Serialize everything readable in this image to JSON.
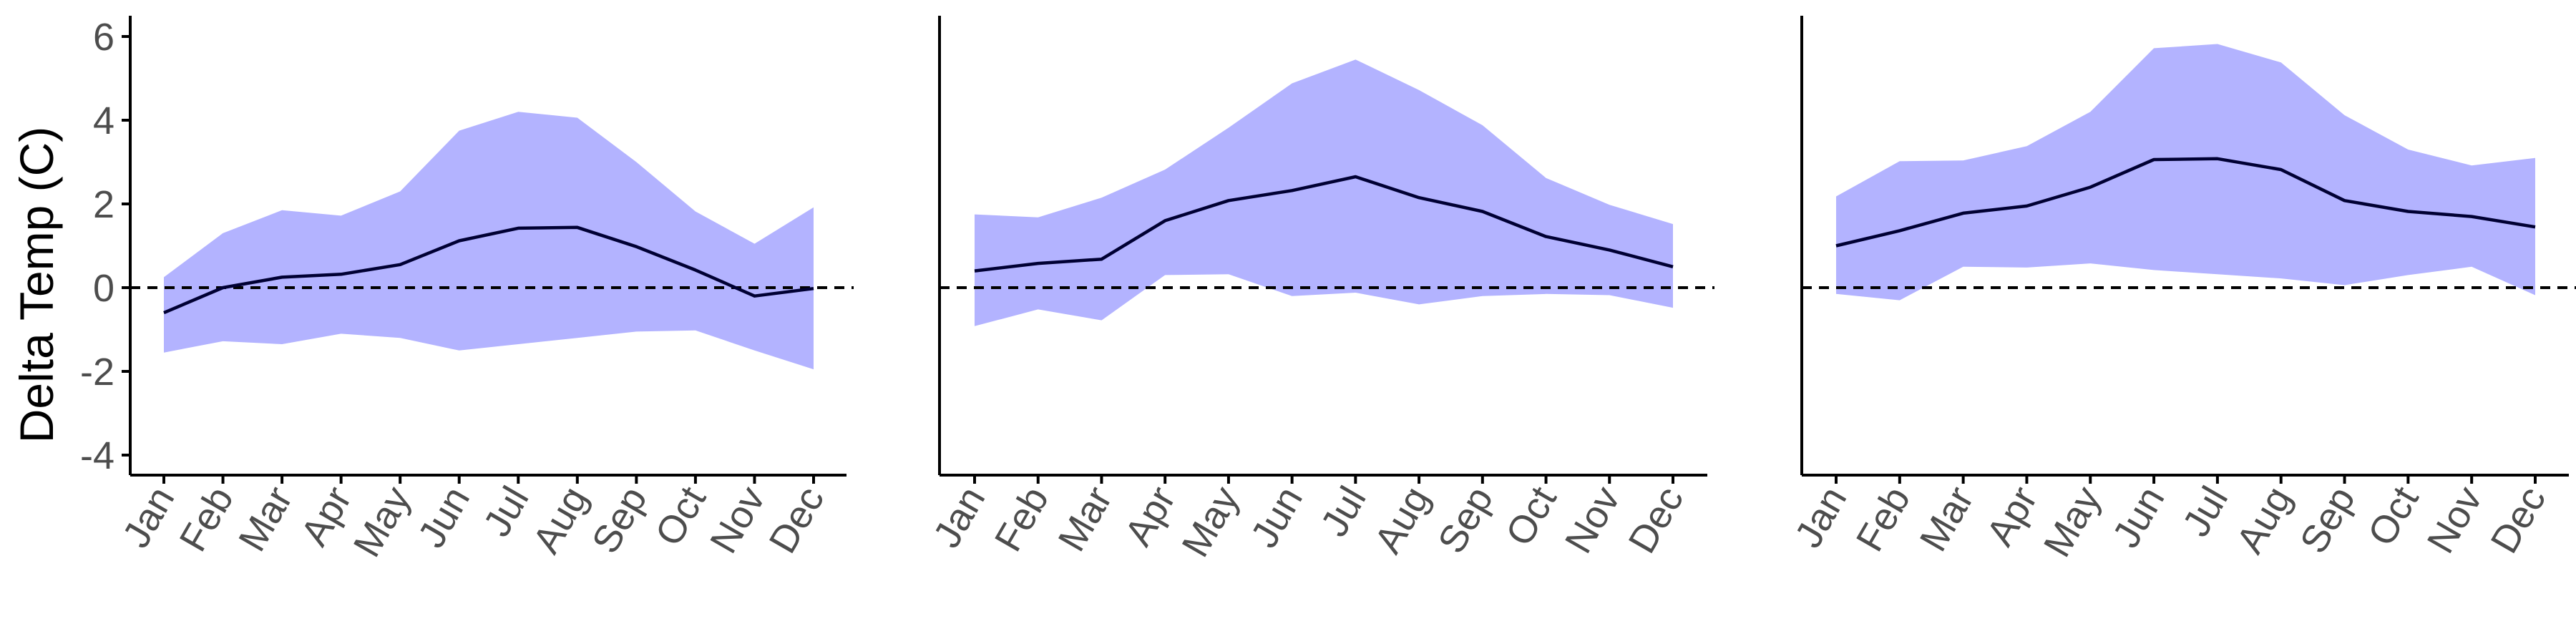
{
  "colors": {
    "ribbon": "#b3b3ff",
    "line": "#000033",
    "axis": "#000000",
    "tick_text": "#4d4d4d",
    "zero_line": "#000000"
  },
  "chart_data": [
    {
      "type": "area",
      "panel": 1,
      "ylabel": "Delta Temp (C)",
      "ylim": [
        -4.5,
        6.5
      ],
      "yticks": [
        -4,
        -2,
        0,
        2,
        4,
        6
      ],
      "show_y_tick_labels": true,
      "categories": [
        "Jan",
        "Feb",
        "Mar",
        "Apr",
        "May",
        "Jun",
        "Jul",
        "Aug",
        "Sep",
        "Oct",
        "Nov",
        "Dec"
      ],
      "series": [
        {
          "role": "mean",
          "values": [
            -0.6,
            0.0,
            0.25,
            0.32,
            0.55,
            1.12,
            1.42,
            1.44,
            0.98,
            0.42,
            -0.2,
            -0.02
          ]
        },
        {
          "role": "upper",
          "values": [
            0.25,
            1.3,
            1.85,
            1.72,
            2.3,
            3.75,
            4.2,
            4.06,
            3.0,
            1.82,
            1.05,
            1.92
          ]
        },
        {
          "role": "lower",
          "values": [
            -1.55,
            -1.28,
            -1.35,
            -1.1,
            -1.2,
            -1.5,
            -1.35,
            -1.2,
            -1.05,
            -1.02,
            -1.5,
            -1.95
          ]
        }
      ],
      "reference_line": 0,
      "grid": false
    },
    {
      "type": "area",
      "panel": 2,
      "ylim": [
        -4.5,
        6.5
      ],
      "show_y_tick_labels": false,
      "categories": [
        "Jan",
        "Feb",
        "Mar",
        "Apr",
        "May",
        "Jun",
        "Jul",
        "Aug",
        "Sep",
        "Oct",
        "Nov",
        "Dec"
      ],
      "series": [
        {
          "role": "mean",
          "values": [
            0.4,
            0.58,
            0.68,
            1.6,
            2.08,
            2.32,
            2.65,
            2.15,
            1.82,
            1.22,
            0.9,
            0.5
          ]
        },
        {
          "role": "upper",
          "values": [
            1.75,
            1.68,
            2.15,
            2.82,
            3.82,
            4.88,
            5.45,
            4.72,
            3.88,
            2.62,
            1.98,
            1.52
          ]
        },
        {
          "role": "lower",
          "values": [
            -0.92,
            -0.52,
            -0.78,
            0.3,
            0.32,
            -0.2,
            -0.12,
            -0.4,
            -0.2,
            -0.15,
            -0.18,
            -0.48
          ]
        }
      ],
      "reference_line": 0,
      "grid": false
    },
    {
      "type": "area",
      "panel": 3,
      "ylim": [
        -4.5,
        6.5
      ],
      "show_y_tick_labels": false,
      "categories": [
        "Jan",
        "Feb",
        "Mar",
        "Apr",
        "May",
        "Jun",
        "Jul",
        "Aug",
        "Sep",
        "Oct",
        "Nov",
        "Dec"
      ],
      "series": [
        {
          "role": "mean",
          "values": [
            1.0,
            1.36,
            1.78,
            1.95,
            2.4,
            3.06,
            3.08,
            2.82,
            2.08,
            1.82,
            1.7,
            1.45
          ]
        },
        {
          "role": "upper",
          "values": [
            2.18,
            3.02,
            3.04,
            3.38,
            4.2,
            5.72,
            5.82,
            5.38,
            4.12,
            3.3,
            2.92,
            3.1
          ]
        },
        {
          "role": "lower",
          "values": [
            -0.15,
            -0.3,
            0.5,
            0.48,
            0.58,
            0.42,
            0.32,
            0.22,
            0.06,
            0.3,
            0.5,
            -0.18
          ]
        }
      ],
      "reference_line": 0,
      "grid": false
    }
  ]
}
